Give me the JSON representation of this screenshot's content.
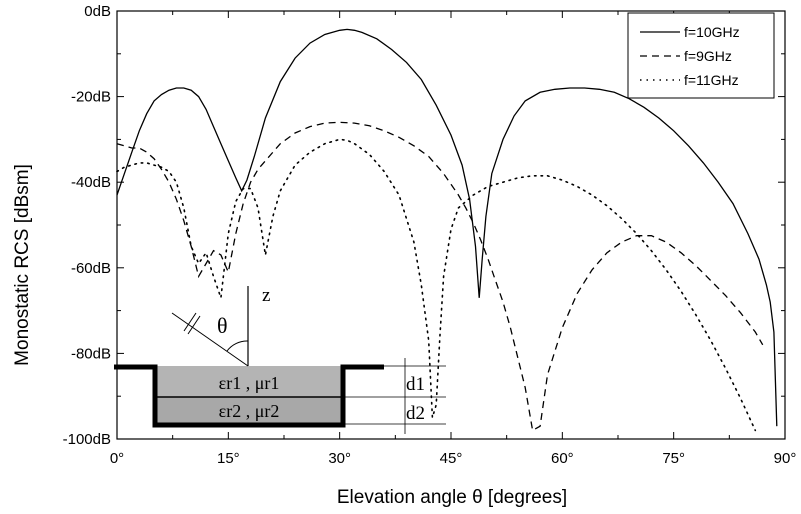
{
  "chart_data": {
    "type": "line",
    "xlabel": "Elevation angle θ [degrees]",
    "ylabel": "Monostatic RCS [dBsm]",
    "xlim": [
      0,
      90
    ],
    "ylim": [
      -100,
      0
    ],
    "x_ticks": [
      {
        "value": 0,
        "label": "0°"
      },
      {
        "value": 15,
        "label": "15°"
      },
      {
        "value": 30,
        "label": "30°"
      },
      {
        "value": 45,
        "label": "45°"
      },
      {
        "value": 60,
        "label": "60°"
      },
      {
        "value": 75,
        "label": "75°"
      },
      {
        "value": 90,
        "label": "90°"
      }
    ],
    "y_ticks": [
      {
        "value": 0,
        "label": "0dB"
      },
      {
        "value": -20,
        "label": "-20dB"
      },
      {
        "value": -40,
        "label": "-40dB"
      },
      {
        "value": -60,
        "label": "-60dB"
      },
      {
        "value": -80,
        "label": "-80dB"
      },
      {
        "value": -100,
        "label": "-100dB"
      }
    ],
    "grid": false,
    "legend_position": "top-right",
    "series": [
      {
        "name": "f=10GHz",
        "style": "solid",
        "x": [
          0,
          1,
          2,
          3,
          4,
          5,
          6,
          7,
          8,
          9,
          10,
          11,
          12,
          13,
          14,
          15,
          16,
          16.8,
          17.5,
          18.5,
          20,
          22,
          24,
          26,
          28,
          30,
          31,
          32,
          33,
          35,
          37,
          39,
          41,
          43,
          45,
          46.5,
          47.5,
          48.3,
          48.8,
          49.2,
          49.7,
          50.5,
          52,
          53.5,
          55,
          57,
          59,
          61,
          63,
          65,
          67,
          69,
          71,
          73,
          75,
          77,
          79,
          81,
          83,
          85,
          86.5,
          87.5,
          88,
          88.5,
          88.9
        ],
        "y": [
          -43,
          -38,
          -33,
          -28,
          -24,
          -21,
          -19.5,
          -18.5,
          -18,
          -18,
          -18.5,
          -20,
          -23,
          -27,
          -31,
          -35,
          -39,
          -42,
          -39.5,
          -34,
          -25,
          -16.5,
          -11,
          -7.5,
          -5.5,
          -4.5,
          -4.3,
          -4.5,
          -5,
          -6.5,
          -9,
          -12,
          -16,
          -22,
          -29,
          -36,
          -44,
          -55,
          -67,
          -58,
          -48,
          -38,
          -30,
          -24.5,
          -21,
          -19,
          -18.3,
          -18,
          -18,
          -18.3,
          -19,
          -20.5,
          -22.5,
          -25,
          -28,
          -31.5,
          -35.5,
          -40,
          -45,
          -52,
          -58,
          -64,
          -68,
          -75,
          -97
        ]
      },
      {
        "name": "f=9GHz",
        "style": "dashed",
        "x": [
          0,
          1,
          2,
          3,
          4,
          5,
          6,
          7,
          8,
          9,
          10,
          11,
          12,
          13,
          14,
          15,
          16,
          17,
          18,
          19,
          20,
          22,
          24,
          26,
          28,
          30,
          32,
          34,
          36,
          38,
          40,
          42,
          43,
          44,
          45,
          46,
          47,
          48,
          49,
          50,
          51,
          52,
          53,
          54,
          55,
          56,
          57,
          58,
          60,
          62,
          64,
          66,
          68,
          70,
          72,
          74,
          76,
          78,
          80,
          82,
          84,
          86,
          87
        ],
        "y": [
          -31,
          -31.5,
          -32,
          -32,
          -33,
          -34.5,
          -37,
          -40,
          -44,
          -49,
          -55,
          -62,
          -59,
          -56,
          -57,
          -61,
          -52,
          -45,
          -40,
          -37,
          -35,
          -31,
          -28.5,
          -27,
          -26.2,
          -26,
          -26.2,
          -26.8,
          -28,
          -29.5,
          -31.5,
          -34,
          -36,
          -38,
          -40.5,
          -43,
          -46,
          -49.5,
          -53.5,
          -58,
          -63,
          -68,
          -74,
          -81,
          -88,
          -98,
          -97,
          -85,
          -74,
          -66,
          -60.5,
          -56.5,
          -54,
          -52.5,
          -52.5,
          -54,
          -56.5,
          -59.5,
          -63,
          -66.5,
          -70.5,
          -75,
          -78
        ]
      },
      {
        "name": "f=11GHz",
        "style": "dotted",
        "x": [
          0,
          1,
          2,
          3,
          4,
          5,
          6,
          7,
          8,
          9,
          10,
          11,
          12,
          13,
          14,
          15,
          16,
          17,
          18,
          19,
          20,
          21,
          22,
          24,
          26,
          28,
          30,
          31,
          32,
          34,
          36,
          38,
          40,
          41,
          42,
          42.5,
          43,
          43.5,
          44,
          45,
          46,
          47,
          48,
          50,
          52,
          54,
          56,
          58,
          60,
          62,
          64,
          66,
          68,
          70,
          72,
          74,
          76,
          78,
          80,
          82,
          84,
          86
        ],
        "y": [
          -37.5,
          -36.5,
          -36,
          -35.5,
          -35.5,
          -36,
          -36.5,
          -37.5,
          -40,
          -46,
          -55,
          -59,
          -56.5,
          -62,
          -67,
          -52,
          -44.5,
          -41.5,
          -41.5,
          -46,
          -57,
          -48,
          -42,
          -36,
          -33,
          -31,
          -30,
          -30.2,
          -31,
          -33.5,
          -37.5,
          -43,
          -54,
          -64,
          -77,
          -95,
          -92,
          -76,
          -62,
          -51,
          -46,
          -44.5,
          -43,
          -41,
          -40,
          -39,
          -38.5,
          -38.5,
          -39.5,
          -41,
          -43,
          -45.5,
          -48.5,
          -52,
          -56,
          -60.5,
          -65.5,
          -71,
          -77,
          -83.5,
          -90.5,
          -98
        ]
      }
    ]
  },
  "inset": {
    "z_label": "z",
    "theta_label": "θ",
    "layer1_label": "εr1 , μr1",
    "layer2_label": "εr2 , μr2",
    "d1_label": "d1",
    "d2_label": "d2"
  }
}
